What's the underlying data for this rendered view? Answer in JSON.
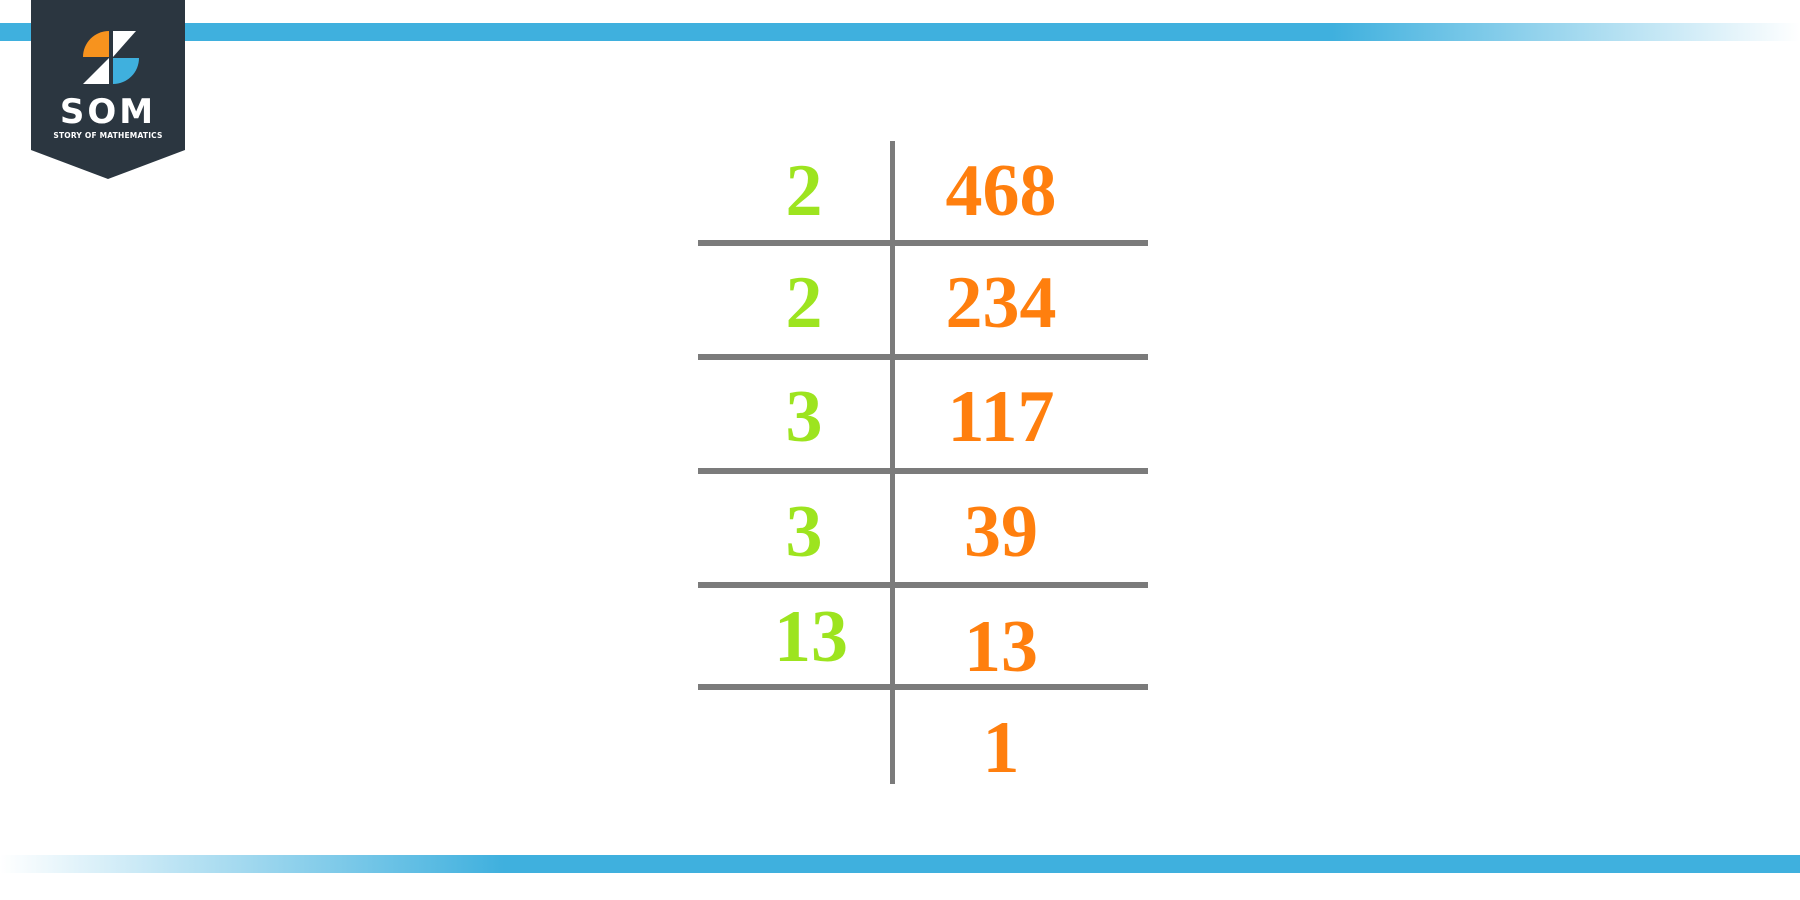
{
  "logo": {
    "title": "SOM",
    "subtitle": "STORY OF MATHEMATICS"
  },
  "colors": {
    "divisor": "#9de41f",
    "quotient": "#ff7f0e",
    "lines": "#7b7b7b",
    "banner": "#3fb0de",
    "logo_bg": "#2b3640"
  },
  "division": {
    "rows": [
      {
        "divisor": "2",
        "value": "468"
      },
      {
        "divisor": "2",
        "value": "234"
      },
      {
        "divisor": "3",
        "value": "117"
      },
      {
        "divisor": "3",
        "value": "39"
      },
      {
        "divisor": "13",
        "value": "13"
      },
      {
        "divisor": "",
        "value": "1"
      }
    ]
  }
}
